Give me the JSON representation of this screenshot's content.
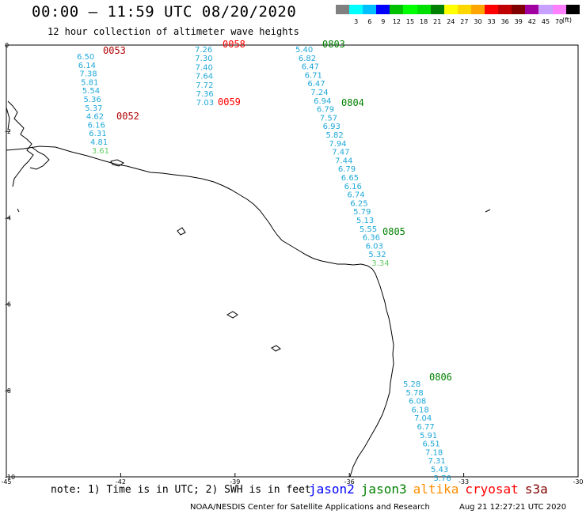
{
  "header": {
    "title": "00:00 – 11:59 UTC 08/20/2020",
    "subtitle": "12 hour collection of altimeter wave heights"
  },
  "legend": {
    "units": "(ft)",
    "items": [
      {
        "label": "",
        "color": "#808080"
      },
      {
        "label": "3",
        "color": "#00ffff"
      },
      {
        "label": "6",
        "color": "#00bfff"
      },
      {
        "label": "9",
        "color": "#0000ff"
      },
      {
        "label": "12",
        "color": "#00c000"
      },
      {
        "label": "15",
        "color": "#00ff00"
      },
      {
        "label": "18",
        "color": "#00e000"
      },
      {
        "label": "21",
        "color": "#008000"
      },
      {
        "label": "24",
        "color": "#ffff00"
      },
      {
        "label": "27",
        "color": "#ffd700"
      },
      {
        "label": "30",
        "color": "#ffa500"
      },
      {
        "label": "33",
        "color": "#ff0000"
      },
      {
        "label": "36",
        "color": "#c00000"
      },
      {
        "label": "39",
        "color": "#800000"
      },
      {
        "label": "42",
        "color": "#a000a0"
      },
      {
        "label": "45",
        "color": "#c8a0ff"
      },
      {
        "label": "70",
        "color": "#ff80ff"
      },
      {
        "label": "",
        "color": "#000000"
      }
    ]
  },
  "axes": {
    "x_ticks": [
      "-45",
      "-42",
      "-39",
      "-36",
      "-33",
      "-30"
    ],
    "y_ticks": [
      "0",
      "-2",
      "-4",
      "-6",
      "-8",
      "-10"
    ]
  },
  "passes": [
    {
      "time": "0053",
      "satellite": "cryosat",
      "color": "#b00000",
      "values": [
        "6.50",
        "6.14",
        "7.38",
        "5.81",
        "5.54",
        "5.36",
        "5.37",
        "4.62",
        "6.16",
        "6.31",
        "4.81",
        "3.61"
      ]
    },
    {
      "time": "0052",
      "satellite": "cryosat",
      "color": "#b00000",
      "values": []
    },
    {
      "time": "0058",
      "satellite": "cryosat",
      "color": "#ff0000",
      "values": [
        "7.26",
        "7.30",
        "7.40",
        "7.64",
        "7.72",
        "7.36",
        "7.03"
      ]
    },
    {
      "time": "0059",
      "satellite": "cryosat",
      "color": "#ff0000",
      "values": []
    },
    {
      "time": "0803",
      "satellite": "jason3",
      "color": "#008000",
      "values": [
        "5.40",
        "6.82",
        "6.47",
        "6.71",
        "6.47",
        "7.24",
        "6.94",
        "6.79",
        "7.57",
        "6.93",
        "5.82",
        "7.94",
        "7.47",
        "7.44",
        "6.79",
        "6.65",
        "6.16",
        "6.74",
        "6.25",
        "5.79",
        "5.13",
        "5.55",
        "6.36",
        "6.03",
        "5.32",
        "3.34"
      ]
    },
    {
      "time": "0804",
      "satellite": "jason3",
      "color": "#008000",
      "values": []
    },
    {
      "time": "0805",
      "satellite": "jason3",
      "color": "#008000",
      "values": []
    },
    {
      "time": "0806",
      "satellite": "jason3",
      "color": "#008000",
      "values": [
        "5.28",
        "5.78",
        "6.08",
        "6.18",
        "7.04",
        "6.77",
        "5.91",
        "6.51",
        "7.18",
        "7.31",
        "5.43",
        "5.76"
      ]
    }
  ],
  "note": "note: 1) Time is in UTC; 2) SWH is in feet",
  "satellites": [
    {
      "name": "jason2",
      "color": "#0000ff"
    },
    {
      "name": "jason3",
      "color": "#008000"
    },
    {
      "name": "altika",
      "color": "#ff8c00"
    },
    {
      "name": "cryosat",
      "color": "#ff0000"
    },
    {
      "name": "s3a",
      "color": "#800000"
    }
  ],
  "footer": {
    "credit": "NOAA/NESDIS Center for Satellite Applications and Research",
    "generated": "Aug 21 12:27:21 UTC 2020"
  }
}
